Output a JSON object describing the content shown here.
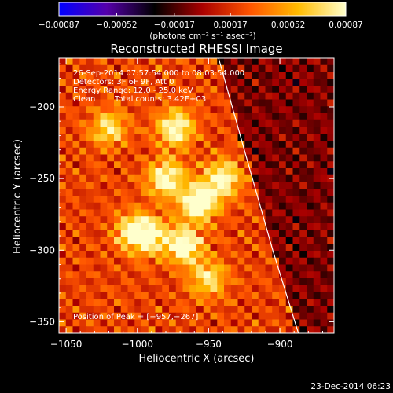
{
  "chart_data": {
    "type": "heatmap",
    "title": "Reconstructed RHESSI Image",
    "xlabel": "Heliocentric X (arcsec)",
    "ylabel": "Heliocentric Y (arcsec)",
    "xlim": [
      -1055,
      -862
    ],
    "ylim": [
      -358,
      -166
    ],
    "x_ticks": [
      -1050,
      -1000,
      -950,
      -900
    ],
    "x_tick_labels": [
      "−1050",
      "−1000",
      "−950",
      "−900"
    ],
    "y_ticks": [
      -200,
      -250,
      -300,
      -350
    ],
    "y_tick_labels": [
      "−200",
      "−250",
      "−300",
      "−350"
    ],
    "colorbar": {
      "min": -0.00087,
      "max": 0.00087,
      "ticks": [
        -0.00087,
        -0.00052,
        -0.00017,
        0.00017,
        0.00052,
        0.00087
      ],
      "tick_labels": [
        "−0.00087",
        "−0.00052",
        "−0.00017",
        "0.00017",
        "0.00052",
        "0.00087"
      ],
      "unit_label": "(photons cm⁻² s⁻¹ asec⁻²)",
      "colormap": [
        "#0000ff",
        "#5500aa",
        "#000000",
        "#aa0000",
        "#ff5500",
        "#ffbb00",
        "#ffffcc"
      ]
    },
    "annotations": [
      "26-Sep-2014 07:57:54.000 to 08:03:54.000",
      "Detectors: 3F 6F 9F, Att 0",
      "Energy Range: 12.0 - 25.0 keV",
      "Clean",
      "Total counts: 3.42E+03"
    ],
    "peak_text": "Position of Peak = [−957,−267]",
    "peak": [
      -957,
      -267
    ],
    "grid_size": 40,
    "limb_curve": [
      [
        -943,
        -166
      ],
      [
        -925,
        -230
      ],
      [
        -905,
        -300
      ],
      [
        -887,
        -358
      ]
    ],
    "hotspots": [
      {
        "x": -973,
        "y": -215,
        "amp": 0.00072
      },
      {
        "x": -980,
        "y": -250,
        "amp": 0.00075
      },
      {
        "x": -957,
        "y": -267,
        "amp": 0.00087
      },
      {
        "x": -1003,
        "y": -287,
        "amp": 0.00065
      },
      {
        "x": -990,
        "y": -290,
        "amp": 0.0006
      },
      {
        "x": -967,
        "y": -297,
        "amp": 0.00075
      },
      {
        "x": -940,
        "y": -250,
        "amp": 0.0007
      },
      {
        "x": -1020,
        "y": -215,
        "amp": 0.00055
      },
      {
        "x": -950,
        "y": -320,
        "amp": 0.00055
      }
    ]
  },
  "footer": {
    "timestamp": "23-Dec-2014 06:23"
  }
}
